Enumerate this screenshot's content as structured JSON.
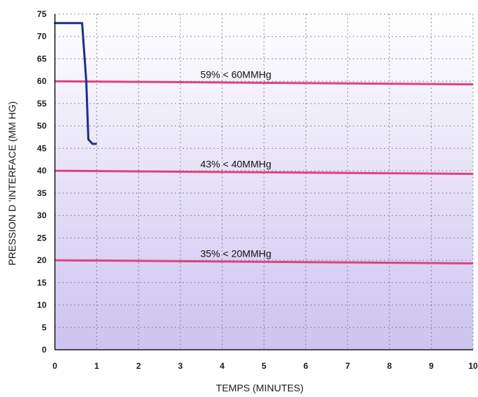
{
  "chart_data": {
    "type": "line",
    "xlabel": "TEMPS (MINUTES)",
    "ylabel": "PRESSION D 'INTERFACE (MM HG)",
    "xlim": [
      0,
      10
    ],
    "ylim": [
      0,
      75
    ],
    "x_ticks": [
      "0",
      "1",
      "2",
      "3",
      "4",
      "5",
      "6",
      "7",
      "8",
      "9",
      "10"
    ],
    "y_ticks": [
      "0",
      "5",
      "10",
      "15",
      "20",
      "25",
      "30",
      "35",
      "40",
      "45",
      "50",
      "55",
      "60",
      "65",
      "70",
      "75"
    ],
    "grid": true,
    "background_gradient": [
      "#ffffff",
      "#cdc3ef"
    ],
    "series": [
      {
        "color": "#1f2d8c",
        "x": [
          0,
          0.65,
          0.75,
          0.8,
          0.9,
          0.98
        ],
        "y": [
          73,
          73,
          60,
          47,
          46,
          46
        ]
      }
    ],
    "reference_lines": [
      {
        "y_start": 60,
        "y_end": 59.3,
        "label": "59% < 60MMHg",
        "color": "#e0427e"
      },
      {
        "y_start": 40,
        "y_end": 39.3,
        "label": "43% < 40MMHg",
        "color": "#e0427e"
      },
      {
        "y_start": 20,
        "y_end": 19.3,
        "label": "35% < 20MMHg",
        "color": "#e0427e"
      }
    ]
  }
}
